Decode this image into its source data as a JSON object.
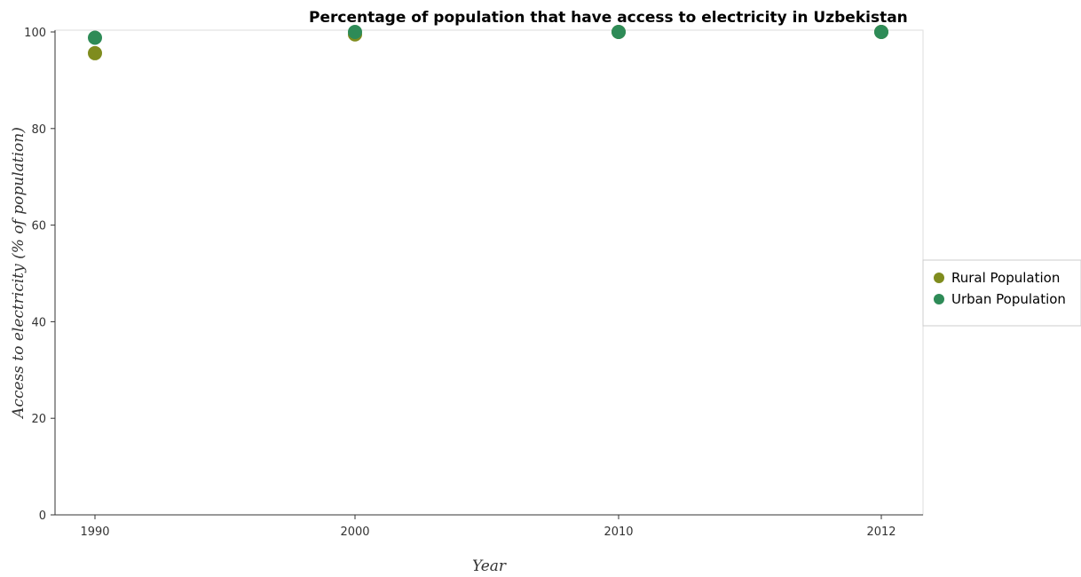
{
  "chart_data": {
    "type": "scatter",
    "title": "Percentage of population that have access to electricity in Uzbekistan",
    "xlabel": "Year",
    "ylabel": "Access to electricity (% of population)",
    "categories": [
      "1990",
      "2000",
      "2010",
      "2012"
    ],
    "ylim": [
      0,
      100
    ],
    "yticks": [
      "0",
      "20",
      "40",
      "60",
      "80",
      "100"
    ],
    "grid": false,
    "legend_position": "right",
    "series": [
      {
        "name": "Rural Population",
        "color": "#7f8c1e",
        "values": [
          95.6,
          99.5,
          100,
          100
        ]
      },
      {
        "name": "Urban Population",
        "color": "#2e8b57",
        "values": [
          98.8,
          100,
          100,
          100
        ]
      }
    ]
  }
}
